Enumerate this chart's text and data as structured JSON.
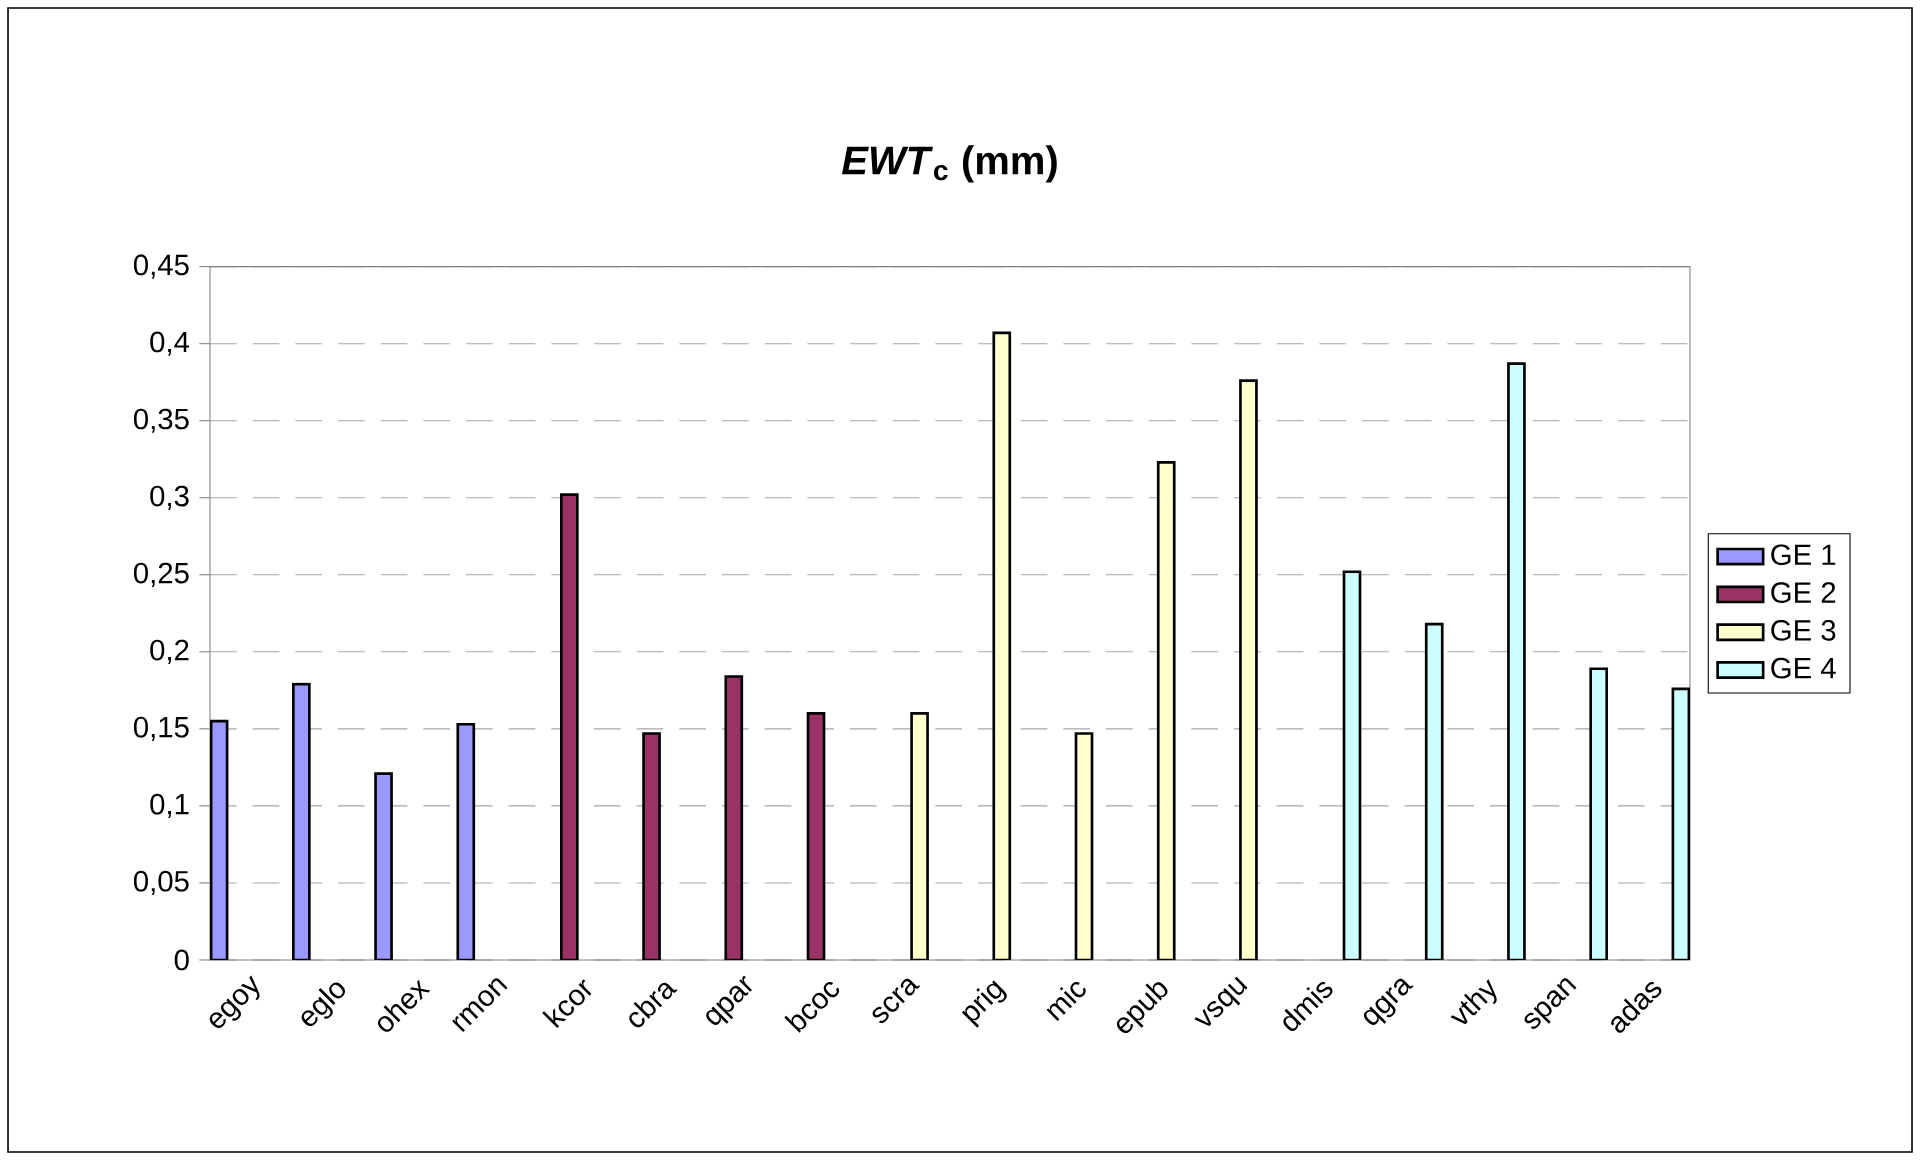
{
  "chart_data": {
    "type": "bar",
    "title": "*EWT*$_{c}$ (mm)",
    "categories": [
      "egoy",
      "eglo",
      "ohex",
      "rmon",
      "kcor",
      "cbra",
      "qpar",
      "bcoc",
      "scra",
      "prig",
      "mic",
      "epub",
      "vsqu",
      "dmis",
      "qgra",
      "vthy",
      "span",
      "adas"
    ],
    "series": [
      {
        "name": "GE 1",
        "color": "#9999ff",
        "values": [
          0.155,
          0.179,
          0.121,
          0.153,
          null,
          null,
          null,
          null,
          null,
          null,
          null,
          null,
          null,
          null,
          null,
          null,
          null,
          null
        ]
      },
      {
        "name": "GE 2",
        "color": "#993366",
        "values": [
          null,
          null,
          null,
          null,
          0.302,
          0.147,
          0.184,
          0.16,
          null,
          null,
          null,
          null,
          null,
          null,
          null,
          null,
          null,
          null
        ]
      },
      {
        "name": "GE 3",
        "color": "#ffffcc",
        "values": [
          null,
          null,
          null,
          null,
          null,
          null,
          null,
          null,
          0.16,
          0.407,
          0.147,
          0.323,
          0.376,
          null,
          null,
          null,
          null,
          null
        ]
      },
      {
        "name": "GE 4",
        "color": "#ccffff",
        "values": [
          null,
          null,
          null,
          null,
          null,
          null,
          null,
          null,
          null,
          null,
          null,
          null,
          null,
          0.252,
          0.218,
          0.387,
          0.189,
          0.176
        ]
      }
    ],
    "ylim": [
      0,
      0.45
    ],
    "yticks": [
      0,
      {
        "value": 0.05,
        "label": "0,05"
      },
      {
        "value": 0.1,
        "label": "0,1"
      },
      {
        "value": 0.15,
        "label": "0,15"
      },
      {
        "value": 0.2,
        "label": "0,2"
      },
      {
        "value": 0.25,
        "label": "0,25"
      },
      {
        "value": 0.3,
        "label": "0,3"
      },
      {
        "value": 0.35,
        "label": "0,35"
      },
      {
        "value": 0.4,
        "label": "0,4"
      },
      {
        "value": 0.45,
        "label": "0,45"
      }
    ],
    "grid": "y",
    "legend": "right"
  }
}
